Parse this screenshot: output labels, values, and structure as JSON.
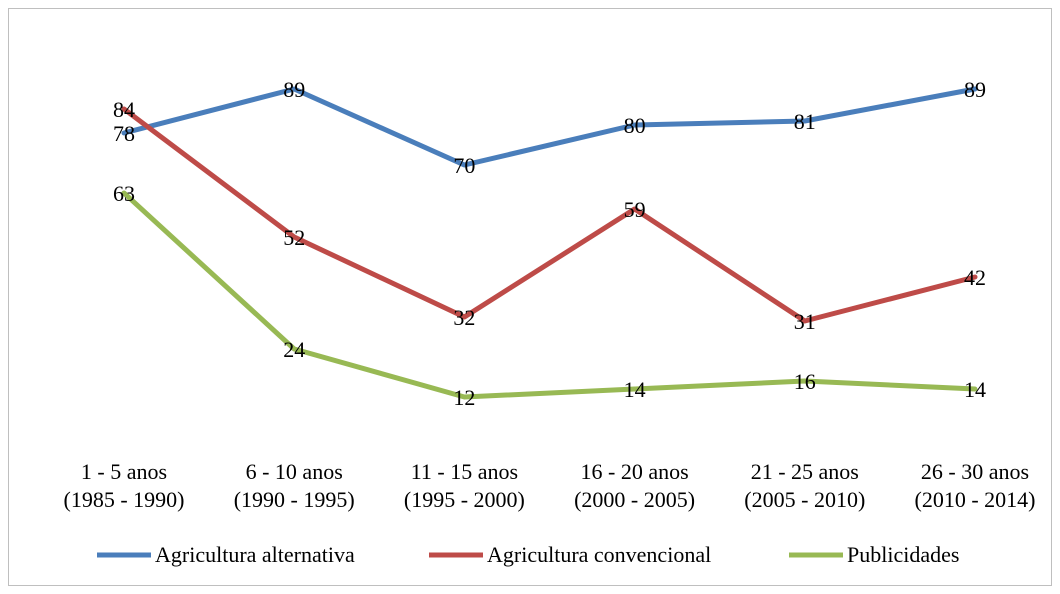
{
  "chart_data": {
    "type": "line",
    "title": "",
    "xlabel": "",
    "ylabel": "",
    "categories": [
      [
        "1 - 5 anos",
        "(1985 - 1990)"
      ],
      [
        "6 - 10 anos",
        "(1990 - 1995)"
      ],
      [
        "11 - 15 anos",
        "(1995 - 2000)"
      ],
      [
        "16 - 20 anos",
        "(2000 - 2005)"
      ],
      [
        "21 - 25 anos",
        "(2005 - 2010)"
      ],
      [
        "26 - 30 anos",
        "(2010 - 2014)"
      ]
    ],
    "ylim": [
      0,
      100
    ],
    "grid": false,
    "legend_position": "bottom",
    "series": [
      {
        "name": "Agricultura alternativa",
        "color": "#4a7ebb",
        "values": [
          78,
          89,
          70,
          80,
          81,
          89
        ]
      },
      {
        "name": "Agricultura convencional",
        "color": "#be4b48",
        "values": [
          84,
          52,
          32,
          59,
          31,
          42
        ]
      },
      {
        "name": "Publicidades",
        "color": "#98b954",
        "values": [
          63,
          24,
          12,
          14,
          16,
          14
        ]
      }
    ]
  }
}
